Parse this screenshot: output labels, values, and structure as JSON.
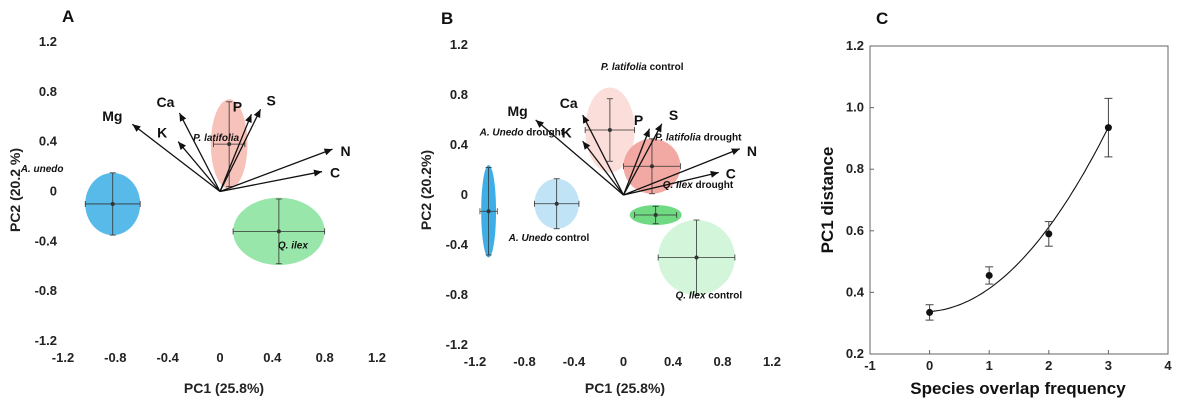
{
  "chart_data": [
    {
      "panel": "A",
      "type": "scatter",
      "xlabel": "PC1 (25.8%)",
      "ylabel": "PC2 (20.2 %)",
      "xlim": [
        -1.2,
        1.2
      ],
      "ylim": [
        -1.2,
        1.2
      ],
      "xticks": [
        "-1.2",
        "-0.8",
        "-0.4",
        "0",
        "0.4",
        "0.8",
        "1.2"
      ],
      "yticks": [
        "1.2",
        "0.8",
        "0.4",
        "0",
        "-0.4",
        "-0.8",
        "-1.2"
      ],
      "vectors": [
        {
          "label": "Mg",
          "x": -0.67,
          "y": 0.54
        },
        {
          "label": "Ca",
          "x": -0.31,
          "y": 0.63
        },
        {
          "label": "K",
          "x": -0.32,
          "y": 0.4
        },
        {
          "label": "P",
          "x": 0.24,
          "y": 0.62
        },
        {
          "label": "S",
          "x": 0.31,
          "y": 0.66
        },
        {
          "label": "N",
          "x": 0.86,
          "y": 0.34
        },
        {
          "label": "C",
          "x": 0.78,
          "y": 0.16
        }
      ],
      "groups": [
        {
          "label": "P. latifolia",
          "italic_part": "P. latifolia",
          "suffix": "",
          "x": 0.07,
          "y": 0.38,
          "xerr": 0.12,
          "yerr": 0.34,
          "sx": 0.14,
          "sy": 0.36,
          "color": "#f4b7ae"
        },
        {
          "label": "A. unedo",
          "italic_part": "A. unedo",
          "suffix": "",
          "x": -0.82,
          "y": -0.1,
          "xerr": 0.21,
          "yerr": 0.25,
          "sx": 0.21,
          "sy": 0.25,
          "color": "#39aee5"
        },
        {
          "label": "Q. ilex",
          "italic_part": "Q. ilex",
          "suffix": "",
          "x": 0.45,
          "y": -0.32,
          "xerr": 0.35,
          "yerr": 0.26,
          "sx": 0.35,
          "sy": 0.27,
          "color": "#86e29a"
        }
      ]
    },
    {
      "panel": "B",
      "type": "scatter",
      "xlabel": "PC1 (25.8%)",
      "ylabel": "PC2 (20.2%)",
      "xlim": [
        -1.2,
        1.2
      ],
      "ylim": [
        -1.2,
        1.2
      ],
      "xticks": [
        "-1.2",
        "-0.8",
        "-0.4",
        "0",
        "0.4",
        "0.8",
        "1.2"
      ],
      "yticks": [
        "1.2",
        "0.8",
        "0.4",
        "0",
        "-0.4",
        "-0.8",
        "-1.2"
      ],
      "vectors": [
        {
          "label": "Mg",
          "x": -0.71,
          "y": 0.6
        },
        {
          "label": "Ca",
          "x": -0.33,
          "y": 0.64
        },
        {
          "label": "K",
          "x": -0.33,
          "y": 0.43
        },
        {
          "label": "P",
          "x": 0.21,
          "y": 0.53
        },
        {
          "label": "S",
          "x": 0.31,
          "y": 0.57
        },
        {
          "label": "N",
          "x": 0.94,
          "y": 0.37
        },
        {
          "label": "C",
          "x": 0.77,
          "y": 0.18
        }
      ],
      "groups": [
        {
          "label": "P. latifolia control",
          "italic_part": "P. latifolia",
          "suffix": " control",
          "x": -0.11,
          "y": 0.52,
          "xerr": 0.2,
          "yerr": 0.25,
          "sx": 0.2,
          "sy": 0.34,
          "color": "#fad7d2"
        },
        {
          "label": "P. latifolia drought",
          "italic_part": "P. latifolia",
          "suffix": " drought",
          "x": 0.23,
          "y": 0.23,
          "xerr": 0.23,
          "yerr": 0.22,
          "sx": 0.23,
          "sy": 0.22,
          "color": "#f09a93"
        },
        {
          "label": "A. Unedo drought",
          "italic_part": "A. Unedo",
          "suffix": " drought",
          "x": -1.09,
          "y": -0.13,
          "xerr": 0.07,
          "yerr": 0.35,
          "sx": 0.06,
          "sy": 0.37,
          "color": "#1ba1e2"
        },
        {
          "label": "A. Unedo control",
          "italic_part": "A. Unedo",
          "suffix": " control",
          "x": -0.54,
          "y": -0.07,
          "xerr": 0.18,
          "yerr": 0.2,
          "sx": 0.18,
          "sy": 0.2,
          "color": "#b5dff4"
        },
        {
          "label": "Q. Ilex drought",
          "italic_part": "Q. Ilex",
          "suffix": " drought",
          "x": 0.26,
          "y": -0.16,
          "xerr": 0.17,
          "yerr": 0.07,
          "sx": 0.21,
          "sy": 0.08,
          "color": "#57d46d"
        },
        {
          "label": "Q. Ilex control",
          "italic_part": "Q. Ilex",
          "suffix": " control",
          "x": 0.59,
          "y": -0.5,
          "xerr": 0.31,
          "yerr": 0.3,
          "sx": 0.31,
          "sy": 0.3,
          "color": "#cbf3d3"
        }
      ]
    },
    {
      "panel": "C",
      "type": "scatter",
      "xlabel": "Species overlap frequency",
      "ylabel": "PC1 distance",
      "xlim": [
        -1,
        4
      ],
      "ylim": [
        0.2,
        1.2
      ],
      "xticks": [
        "-1",
        "0",
        "1",
        "2",
        "3",
        "4"
      ],
      "yticks": [
        "1.2",
        "1.0",
        "0.8",
        "0.6",
        "0.4",
        "0.2"
      ],
      "points": [
        {
          "x": 0,
          "y": 0.335,
          "err": 0.025
        },
        {
          "x": 1,
          "y": 0.455,
          "err": 0.028
        },
        {
          "x": 2,
          "y": 0.59,
          "err": 0.04
        },
        {
          "x": 3,
          "y": 0.935,
          "err": 0.095
        }
      ],
      "fit": {
        "a": 0.338,
        "b": 0.012,
        "c": 0.0625
      }
    }
  ]
}
